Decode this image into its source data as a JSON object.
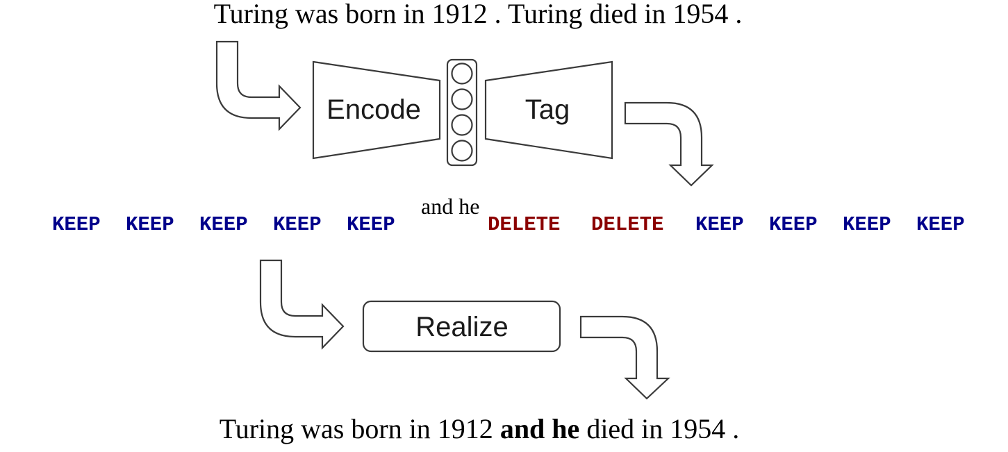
{
  "input_sentence": "Turing was born in 1912 . Turing died in 1954 .",
  "encoder": {
    "label": "Encode"
  },
  "tagger": {
    "label": "Tag"
  },
  "realizer": {
    "label": "Realize"
  },
  "tags": [
    {
      "label": "KEEP",
      "type": "keep"
    },
    {
      "label": "KEEP",
      "type": "keep"
    },
    {
      "label": "KEEP",
      "type": "keep"
    },
    {
      "label": "KEEP",
      "type": "keep"
    },
    {
      "label": "KEEP",
      "type": "keep"
    },
    {
      "label": "DELETE",
      "type": "delete"
    },
    {
      "label": "DELETE",
      "type": "delete"
    },
    {
      "label": "KEEP",
      "type": "keep"
    },
    {
      "label": "KEEP",
      "type": "keep"
    },
    {
      "label": "KEEP",
      "type": "keep"
    },
    {
      "label": "KEEP",
      "type": "keep"
    }
  ],
  "inserted_phrase": "and he",
  "output_sentence": {
    "before": "Turing was born in 1912 ",
    "inserted": "and he",
    "after": " died in 1954 ."
  },
  "colors": {
    "keep": "#00008b",
    "delete": "#8b0000"
  }
}
